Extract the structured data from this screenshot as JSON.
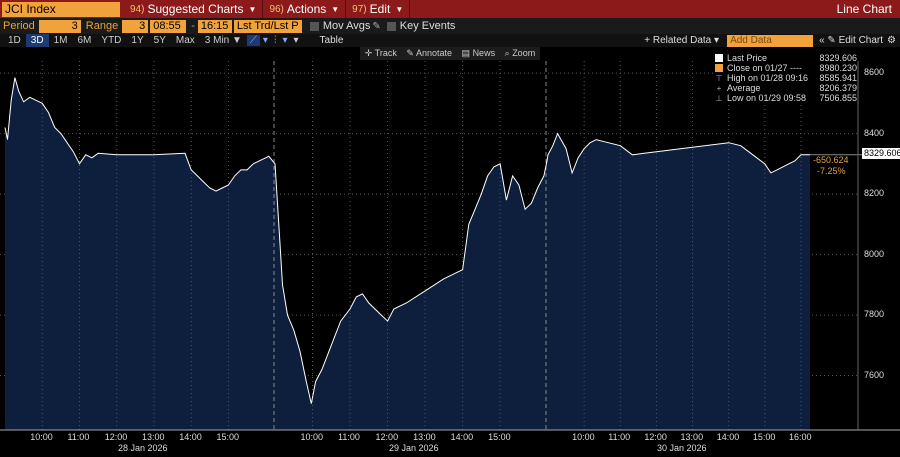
{
  "header": {
    "ticker": "JCI Index",
    "menus": [
      {
        "num": "94)",
        "label": "Suggested Charts"
      },
      {
        "num": "96)",
        "label": "Actions"
      },
      {
        "num": "97)",
        "label": "Edit"
      }
    ],
    "chart_type": "Line Chart"
  },
  "controls": {
    "period_label": "Period",
    "period_value": "3",
    "range_label": "Range",
    "range_value": "3",
    "start_time": "08:55",
    "end_time": "16:15",
    "study": "Lst Trd/Lst P",
    "mov_avgs": "Mov Avgs",
    "key_events": "Key Events"
  },
  "toolbar": {
    "ranges": [
      "1D",
      "3D",
      "1M",
      "6M",
      "YTD",
      "1Y",
      "5Y",
      "Max"
    ],
    "active_range": "3D",
    "interval": "3 Min",
    "table": "Table",
    "related_data": "+ Related Data",
    "add_data_placeholder": "Add Data",
    "edit_chart": "Edit Chart"
  },
  "chart_tools": [
    "Track",
    "Annotate",
    "News",
    "Zoom"
  ],
  "legend": [
    {
      "label": "Last Price",
      "value": "8329.606",
      "marker": "white-box"
    },
    {
      "label": "Close on 01/27 ----",
      "value": "8980.230",
      "marker": "orange-box"
    },
    {
      "label": "High on 01/28 09:16",
      "value": "8585.941",
      "marker": "up-arrow"
    },
    {
      "label": "Average",
      "value": "8206.379",
      "marker": "plus"
    },
    {
      "label": "Low on 01/29 09:58",
      "value": "7506.855",
      "marker": "down-arrow"
    }
  ],
  "last_value_tag": "8329.606",
  "change": {
    "abs": "-650.624",
    "pct": "-7.25%"
  },
  "colors": {
    "line": "#ffffff",
    "fill": "#0d1f3d",
    "accent": "#f2a23a",
    "header": "#8c1a1a"
  },
  "chart_data": {
    "type": "area",
    "y_ticks": [
      7600,
      7800,
      8000,
      8200,
      8400,
      8600
    ],
    "ylim": [
      7420,
      8640
    ],
    "sessions": [
      {
        "date": "28 Jan 2026",
        "ticks": [
          "10:00",
          "11:00",
          "12:00",
          "13:00",
          "14:00",
          "15:00"
        ]
      },
      {
        "date": "29 Jan 2026",
        "ticks": [
          "10:00",
          "11:00",
          "12:00",
          "13:00",
          "14:00",
          "15:00"
        ]
      },
      {
        "date": "30 Jan 2026",
        "ticks": [
          "10:00",
          "11:00",
          "12:00",
          "13:00",
          "14:00",
          "15:00",
          "16:00"
        ]
      }
    ],
    "series": [
      {
        "day": 0,
        "points": [
          [
            "09:00",
            8420
          ],
          [
            "09:04",
            8380
          ],
          [
            "09:10",
            8510
          ],
          [
            "09:16",
            8585
          ],
          [
            "09:22",
            8540
          ],
          [
            "09:30",
            8505
          ],
          [
            "09:40",
            8520
          ],
          [
            "09:50",
            8510
          ],
          [
            "10:00",
            8500
          ],
          [
            "10:10",
            8470
          ],
          [
            "10:20",
            8420
          ],
          [
            "10:30",
            8400
          ],
          [
            "10:40",
            8370
          ],
          [
            "10:50",
            8340
          ],
          [
            "11:00",
            8300
          ],
          [
            "11:10",
            8330
          ],
          [
            "11:20",
            8320
          ],
          [
            "11:30",
            8335
          ],
          [
            "12:00",
            8330
          ],
          [
            "13:00",
            8330
          ],
          [
            "13:50",
            8335
          ],
          [
            "14:00",
            8280
          ],
          [
            "14:10",
            8260
          ],
          [
            "14:20",
            8240
          ],
          [
            "14:30",
            8220
          ],
          [
            "14:40",
            8210
          ],
          [
            "14:50",
            8220
          ],
          [
            "15:00",
            8230
          ],
          [
            "15:10",
            8260
          ],
          [
            "15:20",
            8280
          ],
          [
            "15:30",
            8280
          ],
          [
            "15:40",
            8300
          ],
          [
            "15:50",
            8310
          ],
          [
            "16:00",
            8320
          ],
          [
            "16:05",
            8325
          ]
        ]
      },
      {
        "day": 1,
        "points": [
          [
            "09:00",
            8300
          ],
          [
            "09:06",
            8100
          ],
          [
            "09:12",
            7900
          ],
          [
            "09:20",
            7800
          ],
          [
            "09:30",
            7750
          ],
          [
            "09:40",
            7680
          ],
          [
            "09:50",
            7580
          ],
          [
            "09:58",
            7507
          ],
          [
            "10:05",
            7580
          ],
          [
            "10:15",
            7620
          ],
          [
            "10:30",
            7700
          ],
          [
            "10:45",
            7780
          ],
          [
            "11:00",
            7820
          ],
          [
            "11:10",
            7860
          ],
          [
            "11:20",
            7870
          ],
          [
            "11:30",
            7840
          ],
          [
            "11:50",
            7800
          ],
          [
            "12:00",
            7780
          ],
          [
            "12:10",
            7820
          ],
          [
            "12:30",
            7840
          ],
          [
            "13:00",
            7880
          ],
          [
            "13:30",
            7920
          ],
          [
            "14:00",
            7950
          ],
          [
            "14:10",
            8100
          ],
          [
            "14:20",
            8150
          ],
          [
            "14:30",
            8200
          ],
          [
            "14:40",
            8260
          ],
          [
            "14:50",
            8290
          ],
          [
            "15:00",
            8300
          ],
          [
            "15:10",
            8180
          ],
          [
            "15:20",
            8260
          ],
          [
            "15:30",
            8230
          ],
          [
            "15:40",
            8150
          ],
          [
            "15:50",
            8170
          ],
          [
            "16:00",
            8220
          ],
          [
            "16:10",
            8260
          ],
          [
            "16:15",
            8310
          ]
        ]
      },
      {
        "day": 2,
        "points": [
          [
            "09:00",
            8330
          ],
          [
            "09:08",
            8360
          ],
          [
            "09:16",
            8400
          ],
          [
            "09:30",
            8350
          ],
          [
            "09:40",
            8270
          ],
          [
            "09:50",
            8320
          ],
          [
            "10:00",
            8350
          ],
          [
            "10:10",
            8370
          ],
          [
            "10:20",
            8380
          ],
          [
            "10:40",
            8370
          ],
          [
            "11:00",
            8360
          ],
          [
            "11:20",
            8330
          ],
          [
            "11:40",
            8335
          ],
          [
            "12:00",
            8340
          ],
          [
            "13:00",
            8355
          ],
          [
            "14:00",
            8370
          ],
          [
            "14:20",
            8360
          ],
          [
            "14:40",
            8330
          ],
          [
            "15:00",
            8300
          ],
          [
            "15:10",
            8270
          ],
          [
            "15:20",
            8280
          ],
          [
            "15:40",
            8300
          ],
          [
            "15:50",
            8310
          ],
          [
            "16:00",
            8330
          ],
          [
            "16:15",
            8330
          ]
        ]
      }
    ]
  }
}
